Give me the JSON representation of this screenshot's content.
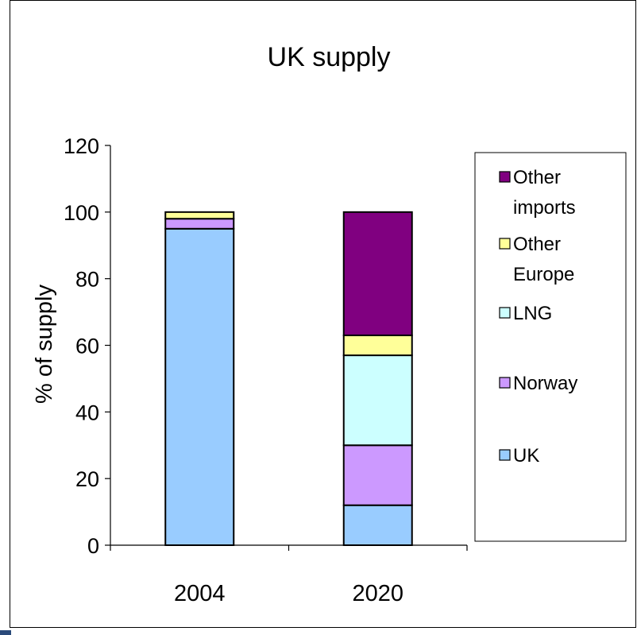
{
  "colors": {
    "UK": "#99ccff",
    "Norway": "#cc99ff",
    "LNG": "#ccffff",
    "Other Europe": "#ffff99",
    "Other imports": "#800080"
  },
  "chart_data": {
    "type": "bar",
    "stacked": true,
    "title": "UK supply",
    "xlabel": "",
    "ylabel": "% of supply",
    "ylim": [
      0,
      120
    ],
    "yticks": [
      0,
      20,
      40,
      60,
      80,
      100,
      120
    ],
    "categories": [
      "2004",
      "2020"
    ],
    "series": [
      {
        "name": "UK",
        "values": [
          95,
          12
        ]
      },
      {
        "name": "Norway",
        "values": [
          3,
          18
        ]
      },
      {
        "name": "LNG",
        "values": [
          0,
          27
        ]
      },
      {
        "name": "Other Europe",
        "values": [
          2,
          6
        ]
      },
      {
        "name": "Other imports",
        "values": [
          0,
          37
        ]
      }
    ],
    "legend": {
      "placement": "right",
      "entries": [
        {
          "series": "Other imports",
          "lines": [
            "Other",
            "imports"
          ]
        },
        {
          "series": "Other Europe",
          "lines": [
            "Other",
            "Europe"
          ]
        },
        {
          "series": "LNG",
          "lines": [
            "LNG"
          ]
        },
        {
          "series": "Norway",
          "lines": [
            "Norway"
          ]
        },
        {
          "series": "UK",
          "lines": [
            "UK"
          ]
        }
      ]
    },
    "grid": false
  }
}
